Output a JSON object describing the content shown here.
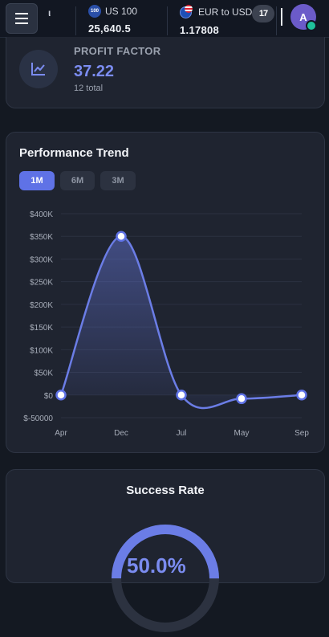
{
  "topbar": {
    "clipped_ticker_char": "ι",
    "tickers": [
      {
        "badge": "100",
        "name": "US 100",
        "value": "25,640.5"
      },
      {
        "name": "EUR to USD",
        "value": "1.17808"
      }
    ],
    "tv_label": "17",
    "avatar_initial": "A"
  },
  "profit_factor": {
    "label": "PROFIT FACTOR",
    "value": "37.22",
    "sub": "12 total"
  },
  "performance": {
    "title": "Performance Trend",
    "ranges": [
      "1M",
      "6M",
      "3M"
    ],
    "active_range": "1M"
  },
  "chart_data": {
    "type": "line",
    "title": "Performance Trend",
    "categories": [
      "Apr",
      "Dec",
      "Jul",
      "May",
      "Sep"
    ],
    "series": [
      {
        "values": [
          0,
          350000,
          0,
          -8000,
          0
        ]
      }
    ],
    "y_ticks": [
      "$400K",
      "$350K",
      "$300K",
      "$250K",
      "$200K",
      "$150K",
      "$100K",
      "$50K",
      "$0",
      "$-50000"
    ],
    "ylim": [
      -50000,
      400000
    ],
    "grid": true,
    "line_color": "#6b7de6"
  },
  "success": {
    "title": "Success Rate",
    "value_text": "50.0%",
    "rate": 0.5
  }
}
